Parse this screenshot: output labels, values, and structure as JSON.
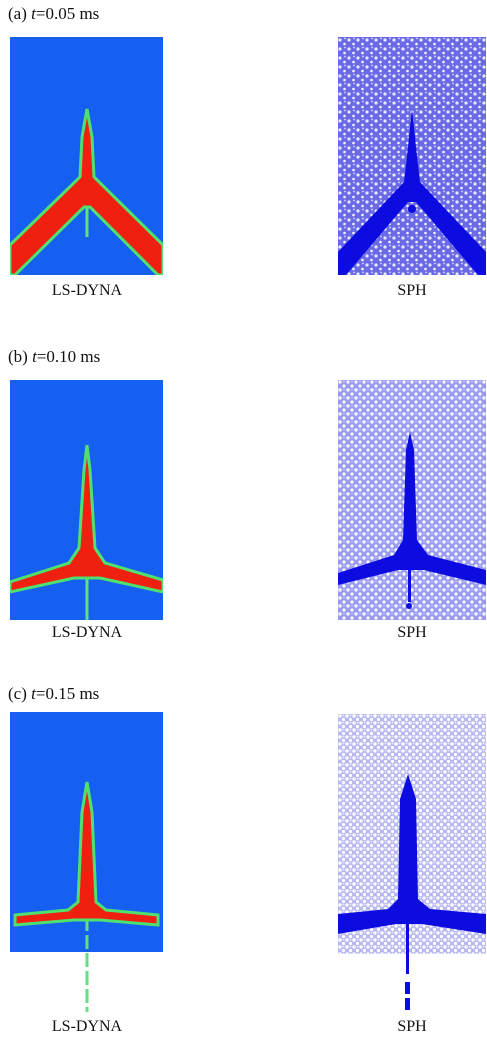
{
  "panels": [
    {
      "tag": "(a)",
      "var": "t",
      "time": "=0.05 ms",
      "left": "LS-DYNA",
      "right": "SPH"
    },
    {
      "tag": "(b)",
      "var": "t",
      "time": "=0.10 ms",
      "left": "LS-DYNA",
      "right": "SPH"
    },
    {
      "tag": "(c)",
      "var": "t",
      "time": "=0.15 ms",
      "left": "LS-DYNA",
      "right": "SPH"
    }
  ]
}
